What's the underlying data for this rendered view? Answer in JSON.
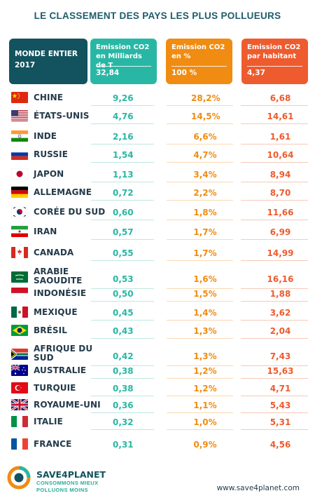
{
  "title": "LE CLASSEMENT DES PAYS LES PLUS POLLUEURS",
  "header": {
    "world_line1": "MONDE ENTIER",
    "world_line2": "2017",
    "col1_line1": "Emission CO2",
    "col1_line2": "en Milliards de T",
    "col1_total": "32,84",
    "col2_line1": "Emission CO2",
    "col2_line2": "en %",
    "col2_total": "100 %",
    "col3_line1": "Emission CO2",
    "col3_line2": "par habitant",
    "col3_total": "4,37"
  },
  "colors": {
    "teal": "#29b7a5",
    "orange": "#f08c12",
    "red_orange": "#ee5b2e",
    "dark_teal": "#12535f"
  },
  "chart_data": {
    "type": "table",
    "title": "LE CLASSEMENT DES PAYS LES PLUS POLLUEURS",
    "columns": [
      "Emission CO2 en Milliards de T",
      "Emission CO2 en %",
      "Emission CO2 par habitant"
    ],
    "rows": [
      {
        "country": "CHINE",
        "flag": "china-flag-icon",
        "mt": "9,26",
        "pct": "28,2%",
        "cap": "6,68"
      },
      {
        "country": "ÉTATS-UNIS",
        "flag": "usa-flag-icon",
        "mt": "4,76",
        "pct": "14,5%",
        "cap": "14,61"
      },
      {
        "country": "INDE",
        "flag": "india-flag-icon",
        "mt": "2,16",
        "pct": "6,6%",
        "cap": "1,61"
      },
      {
        "country": "RUSSIE",
        "flag": "russia-flag-icon",
        "mt": "1,54",
        "pct": "4,7%",
        "cap": "10,64"
      },
      {
        "country": "JAPON",
        "flag": "japan-flag-icon",
        "mt": "1,13",
        "pct": "3,4%",
        "cap": "8,94"
      },
      {
        "country": "ALLEMAGNE",
        "flag": "germany-flag-icon",
        "mt": "0,72",
        "pct": "2,2%",
        "cap": "8,70"
      },
      {
        "country": "CORÉE DU SUD",
        "flag": "south-korea-flag-icon",
        "mt": "0,60",
        "pct": "1,8%",
        "cap": "11,66"
      },
      {
        "country": "IRAN",
        "flag": "iran-flag-icon",
        "mt": "0,57",
        "pct": "1,7%",
        "cap": "6,99"
      },
      {
        "country": "CANADA",
        "flag": "canada-flag-icon",
        "mt": "0,55",
        "pct": "1,7%",
        "cap": "14,99"
      },
      {
        "country": "ARABIE SAOUDITE",
        "line1": "ARABIE",
        "line2": "SAOUDITE",
        "flag": "saudi-arabia-flag-icon",
        "mt": "0,53",
        "pct": "1,6%",
        "cap": "16,16"
      },
      {
        "country": "INDONÉSIE",
        "flag": "indonesia-flag-icon",
        "mt": "0,50",
        "pct": "1,5%",
        "cap": "1,88"
      },
      {
        "country": "MEXIQUE",
        "flag": "mexico-flag-icon",
        "mt": "0,45",
        "pct": "1,4%",
        "cap": "3,62"
      },
      {
        "country": "BRÉSIL",
        "flag": "brazil-flag-icon",
        "mt": "0,43",
        "pct": "1,3%",
        "cap": "2,04"
      },
      {
        "country": "AFRIQUE DU SUD",
        "line1": "AFRIQUE DU",
        "line2": "SUD",
        "flag": "south-africa-flag-icon",
        "mt": "0,42",
        "pct": "1,3%",
        "cap": "7,43"
      },
      {
        "country": "AUSTRALIE",
        "flag": "australia-flag-icon",
        "mt": "0,38",
        "pct": "1,2%",
        "cap": "15,63"
      },
      {
        "country": "TURQUIE",
        "flag": "turkey-flag-icon",
        "mt": "0,38",
        "pct": "1,2%",
        "cap": "4,71"
      },
      {
        "country": "ROYAUME-UNI",
        "flag": "uk-flag-icon",
        "mt": "0,36",
        "pct": "1,1%",
        "cap": "5,43"
      },
      {
        "country": "ITALIE",
        "flag": "italy-flag-icon",
        "mt": "0,32",
        "pct": "1,0%",
        "cap": "5,31"
      },
      {
        "country": "FRANCE",
        "flag": "france-flag-icon",
        "mt": "0,31",
        "pct": "0,9%",
        "cap": "4,56"
      }
    ]
  },
  "footer": {
    "brand": "SAVE4PLANET",
    "tagline1": "CONSOMMONS MIEUX",
    "tagline2": "POLLUONS MOINS",
    "url": "www.save4planet.com"
  }
}
